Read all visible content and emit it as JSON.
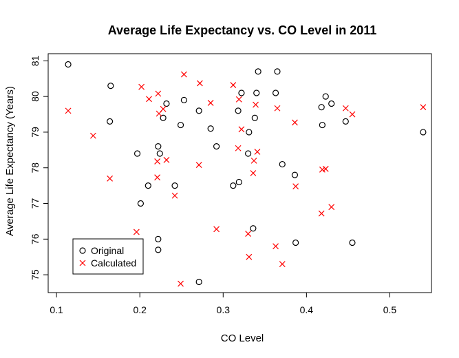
{
  "chart_data": {
    "type": "scatter",
    "title": "Average Life Expectancy vs. CO Level in 2011",
    "xlabel": "CO Level",
    "ylabel": "Average Life Expectancy (Years)",
    "xlim": [
      0.09,
      0.55
    ],
    "ylim": [
      74.5,
      81.2
    ],
    "xticks": [
      0.1,
      0.2,
      0.3,
      0.4,
      0.5
    ],
    "yticks": [
      75,
      76,
      77,
      78,
      79,
      80,
      81
    ],
    "grid": false,
    "legend": {
      "position": "bottom-left",
      "entries": [
        "Original",
        "Calculated"
      ]
    },
    "series": [
      {
        "name": "Original",
        "marker": "open-circle",
        "color": "#000000",
        "points": [
          [
            0.114,
            80.9
          ],
          [
            0.165,
            80.3
          ],
          [
            0.164,
            79.3
          ],
          [
            0.197,
            78.4
          ],
          [
            0.201,
            77.0
          ],
          [
            0.21,
            77.5
          ],
          [
            0.222,
            78.6
          ],
          [
            0.224,
            78.4
          ],
          [
            0.222,
            76.0
          ],
          [
            0.222,
            75.7
          ],
          [
            0.228,
            79.4
          ],
          [
            0.232,
            79.8
          ],
          [
            0.242,
            77.5
          ],
          [
            0.249,
            79.2
          ],
          [
            0.253,
            79.9
          ],
          [
            0.271,
            79.6
          ],
          [
            0.271,
            74.8
          ],
          [
            0.285,
            79.1
          ],
          [
            0.292,
            78.6
          ],
          [
            0.312,
            77.5
          ],
          [
            0.318,
            79.6
          ],
          [
            0.319,
            77.6
          ],
          [
            0.322,
            80.1
          ],
          [
            0.33,
            78.4
          ],
          [
            0.331,
            79.0
          ],
          [
            0.336,
            76.3
          ],
          [
            0.338,
            79.4
          ],
          [
            0.34,
            80.1
          ],
          [
            0.342,
            80.7
          ],
          [
            0.363,
            80.1
          ],
          [
            0.365,
            80.7
          ],
          [
            0.371,
            78.1
          ],
          [
            0.386,
            77.8
          ],
          [
            0.387,
            75.9
          ],
          [
            0.418,
            79.7
          ],
          [
            0.419,
            79.2
          ],
          [
            0.423,
            80.0
          ],
          [
            0.43,
            79.8
          ],
          [
            0.447,
            79.3
          ],
          [
            0.455,
            75.9
          ],
          [
            0.54,
            79.0
          ]
        ]
      },
      {
        "name": "Calculated",
        "marker": "x",
        "color": "#ff0000",
        "points": [
          [
            0.114,
            79.6
          ],
          [
            0.144,
            78.9
          ],
          [
            0.164,
            77.7
          ],
          [
            0.196,
            76.2
          ],
          [
            0.202,
            80.27
          ],
          [
            0.211,
            79.93
          ],
          [
            0.221,
            78.18
          ],
          [
            0.221,
            77.73
          ],
          [
            0.222,
            80.08
          ],
          [
            0.223,
            79.52
          ],
          [
            0.228,
            79.65
          ],
          [
            0.232,
            78.22
          ],
          [
            0.242,
            77.22
          ],
          [
            0.249,
            74.75
          ],
          [
            0.253,
            80.62
          ],
          [
            0.271,
            78.08
          ],
          [
            0.272,
            80.37
          ],
          [
            0.285,
            79.82
          ],
          [
            0.292,
            76.28
          ],
          [
            0.312,
            80.32
          ],
          [
            0.318,
            78.55
          ],
          [
            0.319,
            79.92
          ],
          [
            0.322,
            79.08
          ],
          [
            0.33,
            76.15
          ],
          [
            0.331,
            75.5
          ],
          [
            0.336,
            77.85
          ],
          [
            0.337,
            78.2
          ],
          [
            0.339,
            79.77
          ],
          [
            0.341,
            78.45
          ],
          [
            0.363,
            75.8
          ],
          [
            0.365,
            79.67
          ],
          [
            0.371,
            75.3
          ],
          [
            0.386,
            79.27
          ],
          [
            0.387,
            77.48
          ],
          [
            0.418,
            76.72
          ],
          [
            0.419,
            77.95
          ],
          [
            0.423,
            77.97
          ],
          [
            0.43,
            76.9
          ],
          [
            0.447,
            79.67
          ],
          [
            0.455,
            79.5
          ],
          [
            0.54,
            79.7
          ]
        ]
      }
    ]
  }
}
